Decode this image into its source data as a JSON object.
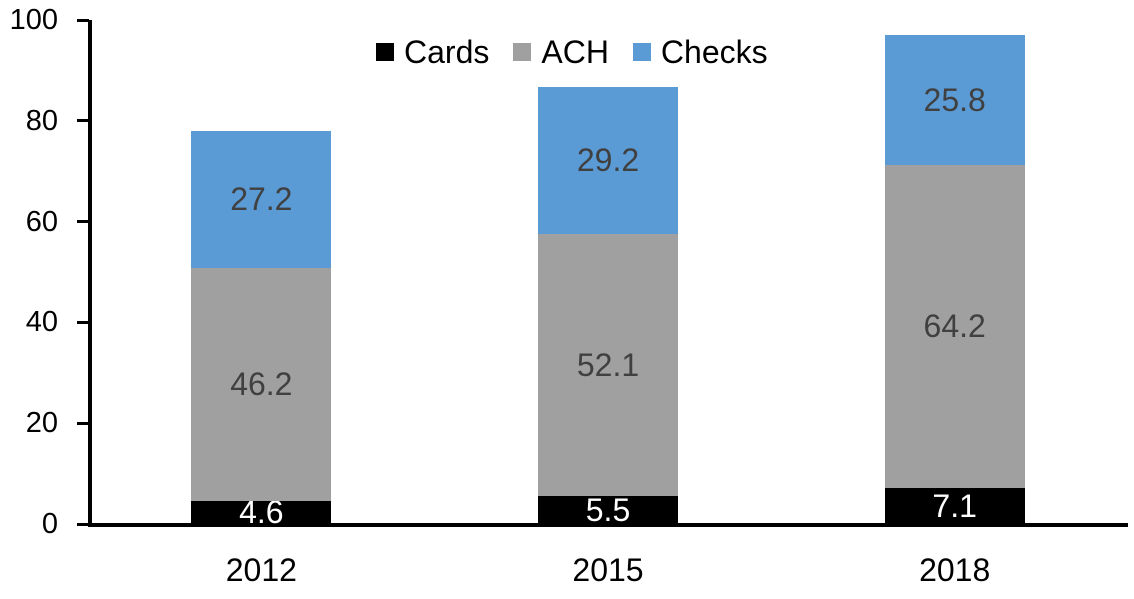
{
  "chart_data": {
    "type": "bar",
    "stacked": true,
    "title": "",
    "xlabel": "",
    "ylabel": "",
    "categories": [
      "2012",
      "2015",
      "2018"
    ],
    "series": [
      {
        "name": "Cards",
        "color": "#000000",
        "label_color": "#ffffff",
        "values": [
          4.6,
          5.5,
          7.1
        ]
      },
      {
        "name": "ACH",
        "color": "#a0a0a0",
        "label_color": "#404040",
        "values": [
          46.2,
          52.1,
          64.2
        ]
      },
      {
        "name": "Checks",
        "color": "#5b9bd5",
        "label_color": "#404040",
        "values": [
          27.2,
          29.2,
          25.8
        ]
      }
    ],
    "totals": [
      78.0,
      86.8,
      97.1
    ],
    "ylim": [
      0,
      100
    ],
    "yticks": [
      0,
      20,
      40,
      60,
      80,
      100
    ],
    "grid": false,
    "legend_position": "top",
    "axis_color": "#000000",
    "background_color": "#ffffff"
  }
}
